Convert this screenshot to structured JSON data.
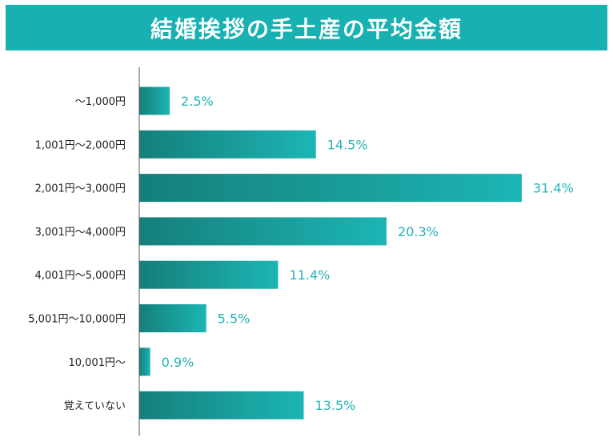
{
  "title": "結婚挨拶の手土産の平均金額",
  "colors": {
    "title_bg": "#18b1b1",
    "title_text": "#ffffff",
    "bar_start": "#157f7a",
    "bar_end": "#1cb5b5",
    "value_label": "#24b3b8",
    "category_label": "#222222",
    "axis": "#555555"
  },
  "chart_data": {
    "type": "bar",
    "orientation": "horizontal",
    "title": "結婚挨拶の手土産の平均金額",
    "categories": [
      "〜1,000円",
      "1,001円〜2,000円",
      "2,001円〜3,000円",
      "3,001円〜4,000円",
      "4,001円〜5,000円",
      "5,001円〜10,000円",
      "10,001円〜",
      "覚えていない"
    ],
    "values": [
      2.5,
      14.5,
      31.4,
      20.3,
      11.4,
      5.5,
      0.9,
      13.5
    ],
    "value_labels": [
      "2.5%",
      "14.5%",
      "31.4%",
      "20.3%",
      "11.4%",
      "5.5%",
      "0.9%",
      "13.5%"
    ],
    "unit": "%",
    "xlim": [
      0,
      35
    ],
    "grid": false,
    "legend": "none"
  }
}
